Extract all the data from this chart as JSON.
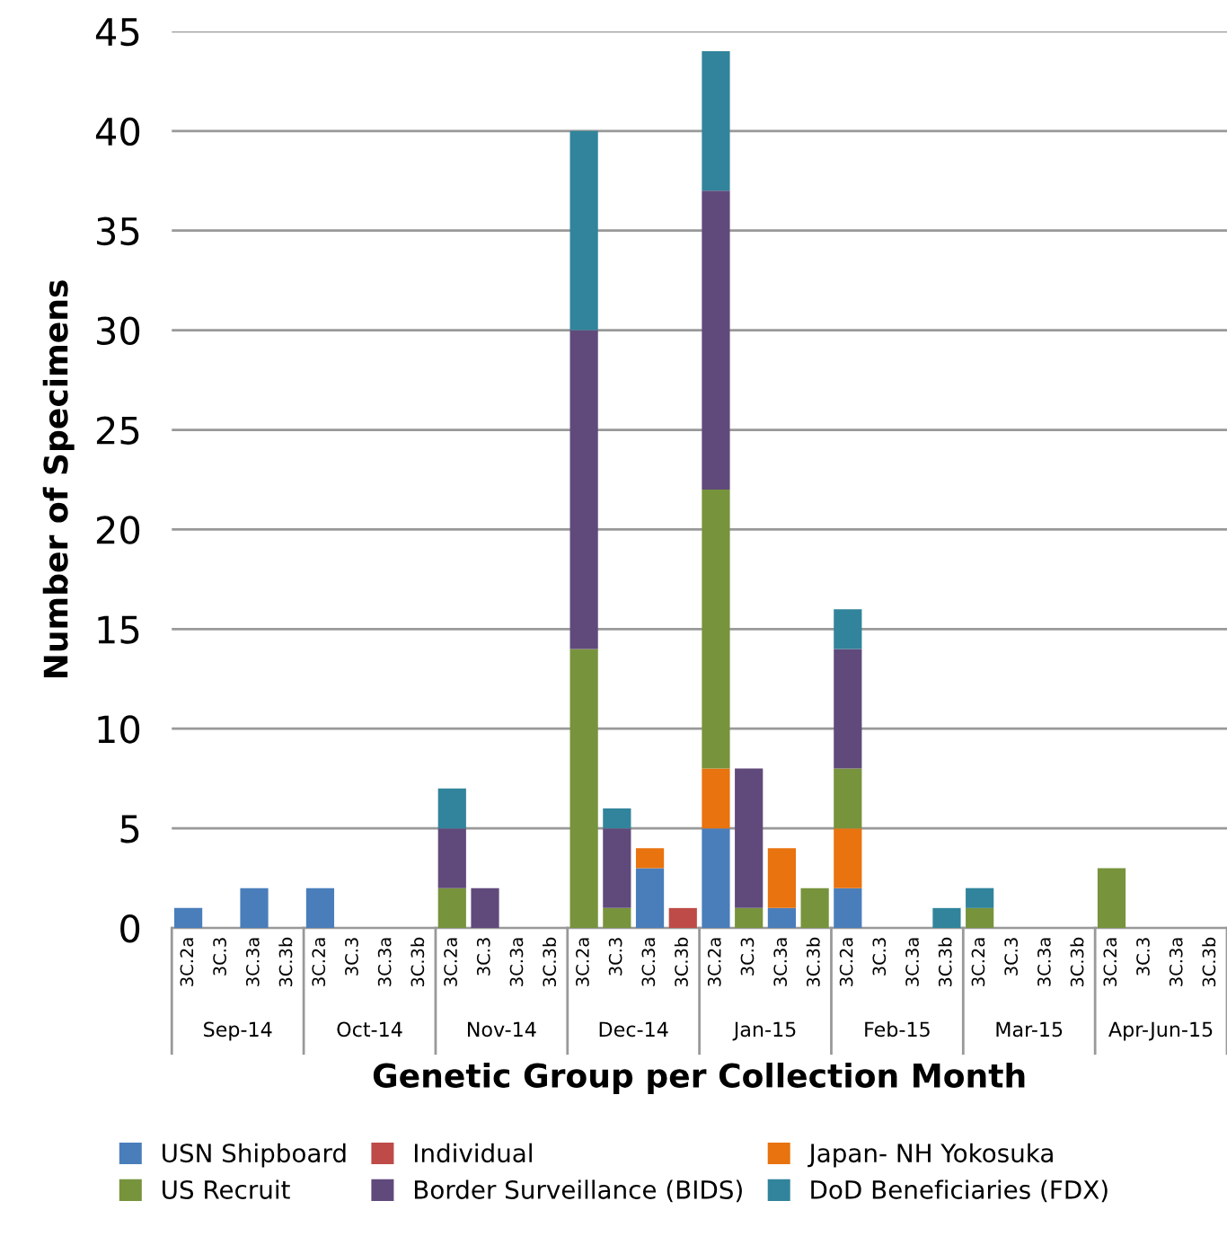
{
  "chart_data": {
    "type": "bar",
    "stacked": true,
    "xlabel": "Genetic Group per Collection Month",
    "ylabel": "Number of Specimens",
    "categories": [
      "3C.2a",
      "3C.3",
      "3C.3a",
      "3C.3b",
      "3C.2a",
      "3C.3",
      "3C.3a",
      "3C.3b",
      "3C.2a",
      "3C.3",
      "3C.3a",
      "3C.3b",
      "3C.2a",
      "3C.3",
      "3C.3a",
      "3C.3b",
      "3C.2a",
      "3C.3",
      "3C.3a",
      "3C.3b",
      "3C.2a",
      "3C.3",
      "3C.3a",
      "3C.3b",
      "3C.2a",
      "3C.3",
      "3C.3a",
      "3C.3b",
      "3C.2a",
      "3C.3",
      "3C.3a",
      "3C.3b"
    ],
    "annotations": [
      "Sep-14",
      "Oct-14",
      "Nov-14",
      "Dec-14",
      "Jan-15",
      "Feb-15",
      "Mar-15",
      "Apr-Jun-15"
    ],
    "series": [
      {
        "name": "USN Shipboard",
        "color": "#4a7ebb",
        "values": [
          1,
          0,
          2,
          0,
          2,
          0,
          0,
          0,
          0,
          0,
          0,
          0,
          0,
          0,
          3,
          0,
          5,
          0,
          1,
          0,
          2,
          0,
          0,
          0,
          0,
          0,
          0,
          0,
          0,
          0,
          0,
          0
        ]
      },
      {
        "name": "Individual",
        "color": "#be4b48",
        "values": [
          0,
          0,
          0,
          0,
          0,
          0,
          0,
          0,
          0,
          0,
          0,
          0,
          0,
          0,
          0,
          1,
          0,
          0,
          0,
          0,
          0,
          0,
          0,
          0,
          0,
          0,
          0,
          0,
          0,
          0,
          0,
          0
        ]
      },
      {
        "name": "Japan- NH Yokosuka",
        "color": "#e8730f",
        "values": [
          0,
          0,
          0,
          0,
          0,
          0,
          0,
          0,
          0,
          0,
          0,
          0,
          0,
          0,
          1,
          0,
          3,
          0,
          3,
          0,
          3,
          0,
          0,
          0,
          0,
          0,
          0,
          0,
          0,
          0,
          0,
          0
        ]
      },
      {
        "name": "US Recruit",
        "color": "#77933c",
        "values": [
          0,
          0,
          0,
          0,
          0,
          0,
          0,
          0,
          2,
          0,
          0,
          0,
          14,
          1,
          0,
          0,
          14,
          1,
          0,
          2,
          3,
          0,
          0,
          0,
          1,
          0,
          0,
          0,
          3,
          0,
          0,
          0
        ]
      },
      {
        "name": "Border Surveillance (BIDS)",
        "color": "#604a7b",
        "values": [
          0,
          0,
          0,
          0,
          0,
          0,
          0,
          0,
          3,
          2,
          0,
          0,
          16,
          4,
          0,
          0,
          15,
          7,
          0,
          0,
          6,
          0,
          0,
          0,
          0,
          0,
          0,
          0,
          0,
          0,
          0,
          0
        ]
      },
      {
        "name": "DoD Beneficiaries (FDX)",
        "color": "#31849b",
        "values": [
          0,
          0,
          0,
          0,
          0,
          0,
          0,
          0,
          2,
          0,
          0,
          0,
          10,
          1,
          0,
          0,
          7,
          0,
          0,
          0,
          2,
          0,
          0,
          1,
          1,
          0,
          0,
          0,
          0,
          0,
          0,
          0
        ]
      }
    ],
    "ylim": [
      0,
      45
    ],
    "yticks": [
      0,
      5,
      10,
      15,
      20,
      25,
      30,
      35,
      40,
      45
    ],
    "grid": "y",
    "legend": "bottom"
  }
}
